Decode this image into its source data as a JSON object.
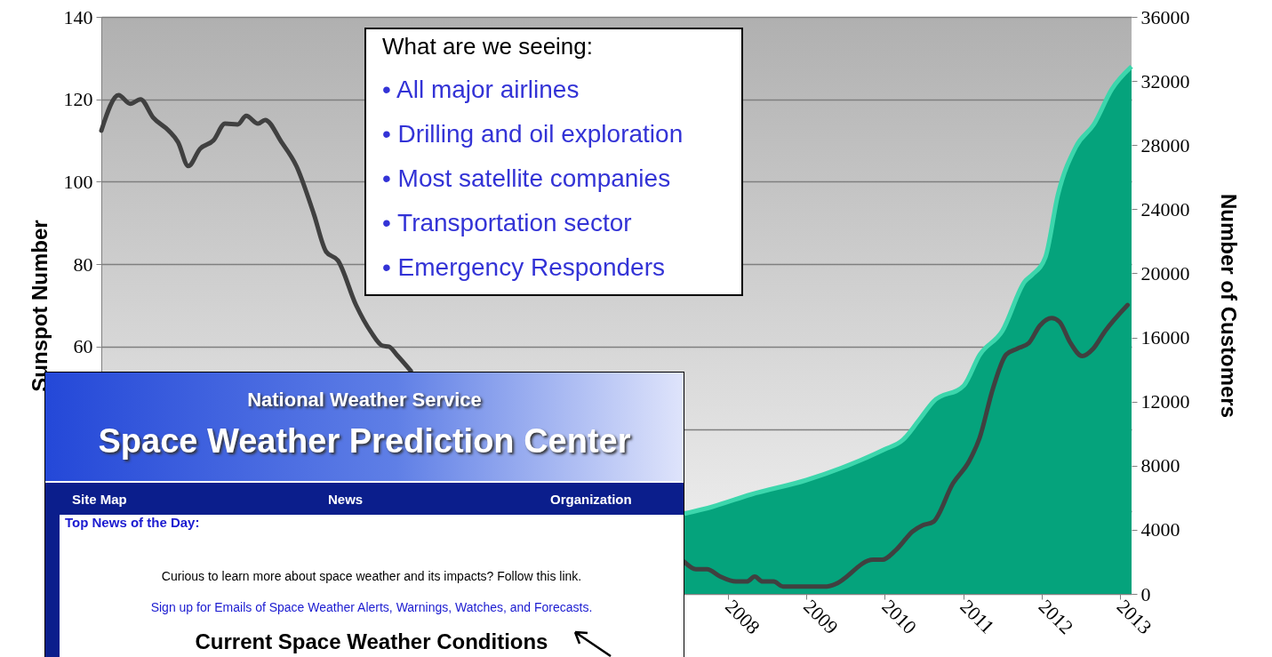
{
  "chart_data": {
    "type": "line",
    "ylabel": "Sunspot Number",
    "y2label": "Number of Customers",
    "xlim": [
      2000,
      2013.15
    ],
    "xticks": [
      2008,
      2009,
      2010,
      2011,
      2012,
      2013
    ],
    "ylim": [
      0,
      140
    ],
    "yticks": [
      {
        "value": 0,
        "label": null
      },
      {
        "value": 20,
        "label": null
      },
      {
        "value": 40,
        "label": null
      },
      60,
      80,
      100,
      120,
      140
    ],
    "y2lim": [
      0,
      36000
    ],
    "y2ticks": [
      0,
      4000,
      8000,
      12000,
      16000,
      20000,
      24000,
      28000,
      32000,
      36000
    ],
    "grid": "y",
    "series": [
      {
        "color": "#404040",
        "x": [
          2000.0,
          2000.22,
          2000.37,
          2000.5,
          2000.66,
          2000.86,
          2000.98,
          2001.11,
          2001.26,
          2001.43,
          2001.58,
          2001.74,
          2001.85,
          2002.0,
          2002.09,
          2002.3,
          2002.49,
          2002.71,
          2002.87,
          2003.02,
          2003.25,
          2003.44,
          2003.59,
          2003.67,
          2003.78,
          2003.95,
          2005.7,
          2007.44,
          2007.59,
          2007.73,
          2007.9,
          2008.1,
          2008.24,
          2008.34,
          2008.44,
          2008.58,
          2008.7,
          2009.26,
          2009.36,
          2009.85,
          2009.97,
          2010.14,
          2010.36,
          2010.48,
          2010.62,
          2010.87,
          2011.08,
          2011.21,
          2011.38,
          2011.55,
          2011.69,
          2011.84,
          2011.98,
          2012.13,
          2012.23,
          2012.37,
          2012.52,
          2012.66,
          2012.81,
          2013.1
        ],
        "values": [
          112.4,
          121,
          118.9,
          120,
          115.6,
          112.4,
          109.6,
          103.8,
          108,
          110,
          114.1,
          113.9,
          116,
          114.1,
          115,
          109.6,
          103.8,
          92.3,
          83,
          80.9,
          70.1,
          63.6,
          60.2,
          60,
          57.8,
          54.1,
          null,
          7.8,
          6,
          6,
          4.2,
          3,
          3,
          4.2,
          3,
          3,
          1.8,
          1.8,
          2.3,
          8.3,
          8.3,
          10.6,
          15.2,
          16.6,
          17.5,
          26.8,
          32.3,
          37.8,
          49.8,
          58.1,
          59.5,
          60.9,
          65.1,
          66.9,
          66,
          60.9,
          57.7,
          59.5,
          63.7,
          70.1
        ]
      },
      {
        "type": "area",
        "axis": "y2",
        "color": "#05a37c",
        "x": [
          2007.44,
          2007.81,
          2008.29,
          2009.0,
          2009.99,
          2010.23,
          2010.43,
          2010.62,
          2011.01,
          2011.21,
          2011.5,
          2011.79,
          2011.88,
          2012.05,
          2012.21,
          2012.44,
          2012.67,
          2012.9,
          2013.15
        ],
        "values": [
          5000,
          5450,
          6200,
          7100,
          9000,
          9600,
          10800,
          12000,
          13000,
          14900,
          16400,
          19500,
          19900,
          21000,
          24900,
          27900,
          29300,
          31500,
          32900
        ]
      }
    ],
    "annotations": [
      "What are we seeing:",
      "• All major airlines",
      "• Drilling and oil exploration",
      "• Most satellite companies",
      "• Transportation sector",
      "• Emergency Responders",
      "National Weather Service",
      "Space Weather Prediction Center",
      "Site Map",
      "News",
      "Organization",
      "Top News of the Day:",
      "Curious to learn more about space weather and its impacts? Follow this link.",
      "Sign up for Emails of Space Weather Alerts, Warnings, Watches, and Forecasts.",
      "Current Space Weather Conditions"
    ]
  }
}
